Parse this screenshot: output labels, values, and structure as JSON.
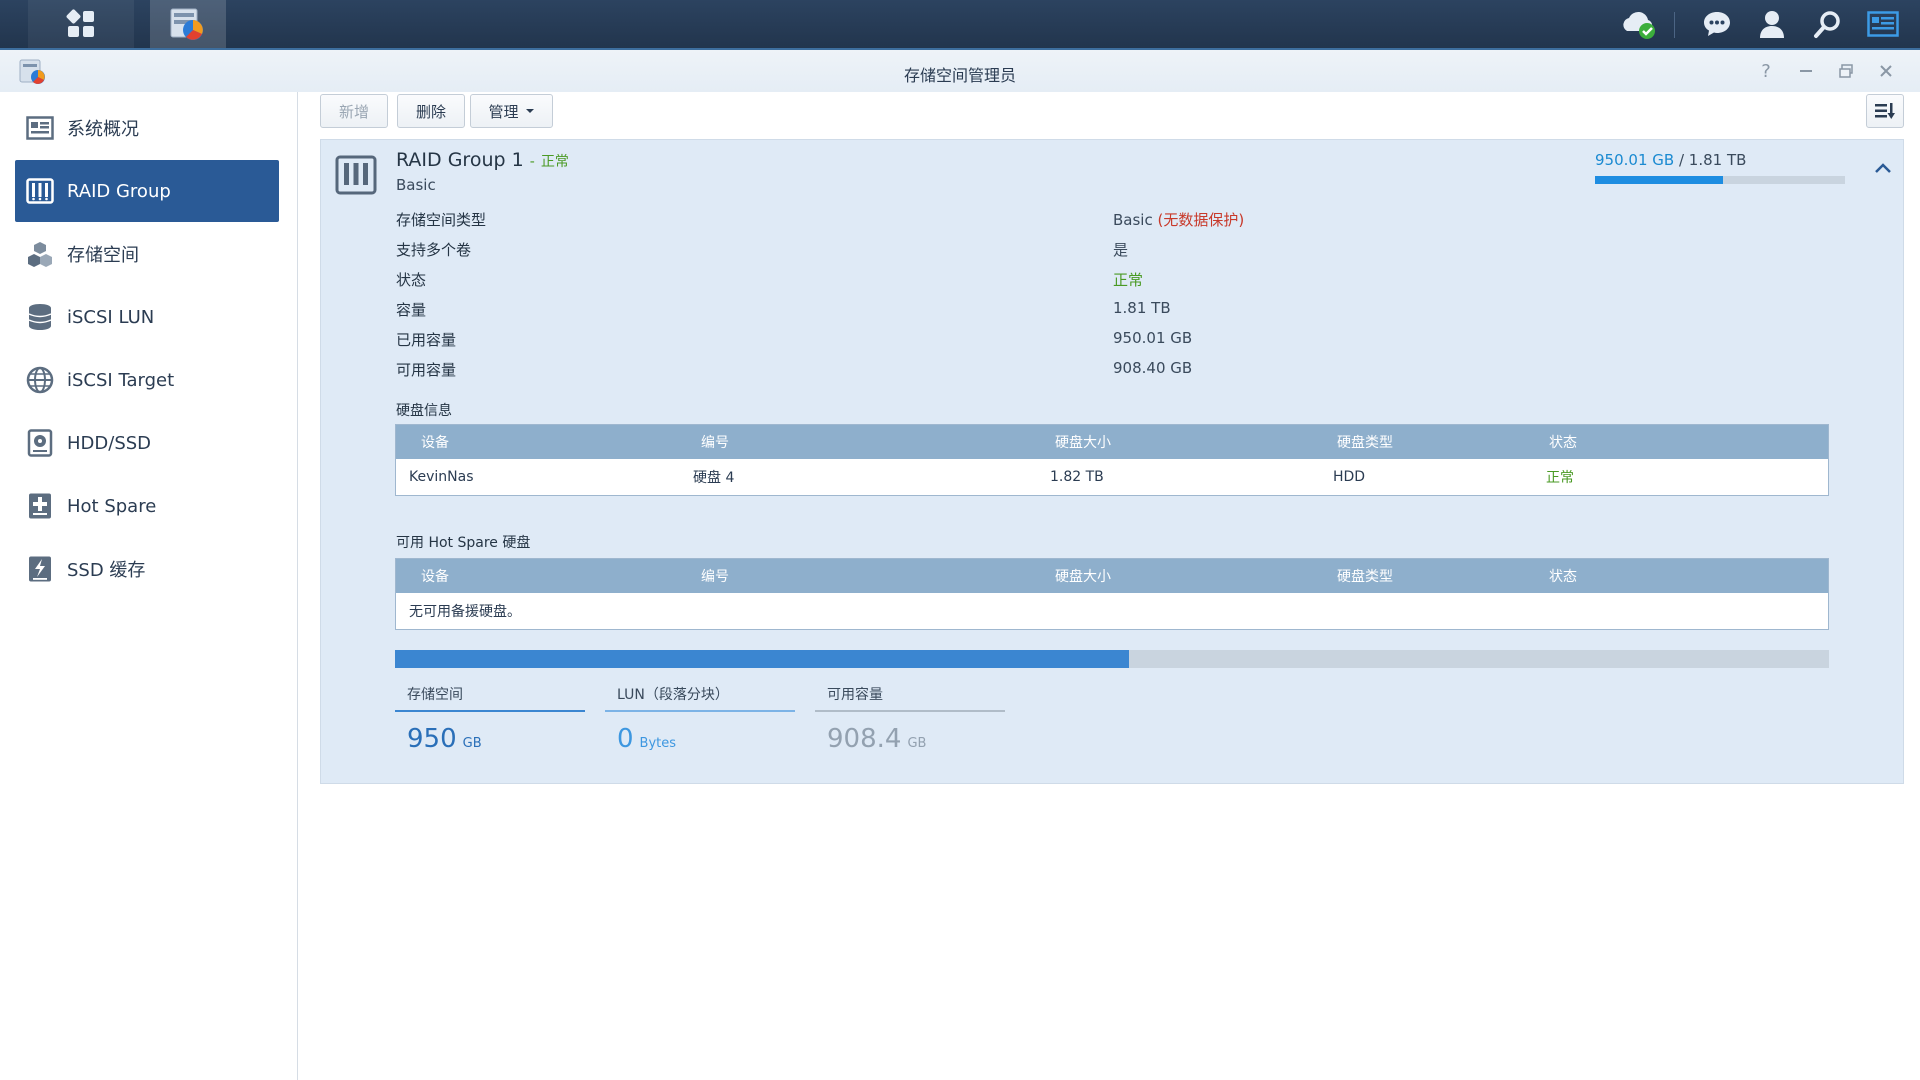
{
  "window": {
    "title": "存储空间管理员"
  },
  "sidebar": {
    "items": [
      {
        "label": "系统概况",
        "icon": "overview-icon"
      },
      {
        "label": "RAID Group",
        "icon": "raid-group-icon",
        "active": true
      },
      {
        "label": "存储空间",
        "icon": "volume-icon"
      },
      {
        "label": "iSCSI LUN",
        "icon": "iscsi-lun-icon"
      },
      {
        "label": "iSCSI Target",
        "icon": "iscsi-target-icon"
      },
      {
        "label": "HDD/SSD",
        "icon": "hdd-icon"
      },
      {
        "label": "Hot Spare",
        "icon": "hot-spare-icon"
      },
      {
        "label": "SSD 缓存",
        "icon": "ssd-cache-icon"
      }
    ]
  },
  "toolbar": {
    "create_label": "新增",
    "delete_label": "删除",
    "manage_label": "管理"
  },
  "raid": {
    "name": "RAID Group 1",
    "dash": "-",
    "status": "正常",
    "type": "Basic",
    "usage_used": "950.01 GB",
    "usage_sep": "/",
    "usage_total": "1.81 TB",
    "usage_fraction": 0.512,
    "info": {
      "type_label": "存储空间类型",
      "type_value": "Basic",
      "type_warning": "(无数据保护)",
      "multi_label": "支持多个卷",
      "multi_value": "是",
      "status_label": "状态",
      "status_value": "正常",
      "capacity_label": "容量",
      "capacity_value": "1.81 TB",
      "used_label": "已用容量",
      "used_value": "950.01 GB",
      "free_label": "可用容量",
      "free_value": "908.40 GB"
    },
    "disk_section_title": "硬盘信息",
    "hotspare_section_title": "可用 Hot Spare 硬盘",
    "table_headers": {
      "device": "设备",
      "number": "编号",
      "size": "硬盘大小",
      "type": "硬盘类型",
      "status": "状态"
    },
    "disks": [
      {
        "device": "KevinNas",
        "number": "硬盘 4",
        "size": "1.82 TB",
        "type": "HDD",
        "status": "正常"
      }
    ],
    "hotspare_empty": "无可用备援硬盘。",
    "allocation_fraction": 0.512,
    "stats": {
      "volume_label": "存储空间",
      "volume_value": "950",
      "volume_unit": "GB",
      "lun_label": "LUN（段落分块）",
      "lun_value": "0",
      "lun_unit": "Bytes",
      "free_label": "可用容量",
      "free_value": "908.4",
      "free_unit": "GB"
    }
  }
}
